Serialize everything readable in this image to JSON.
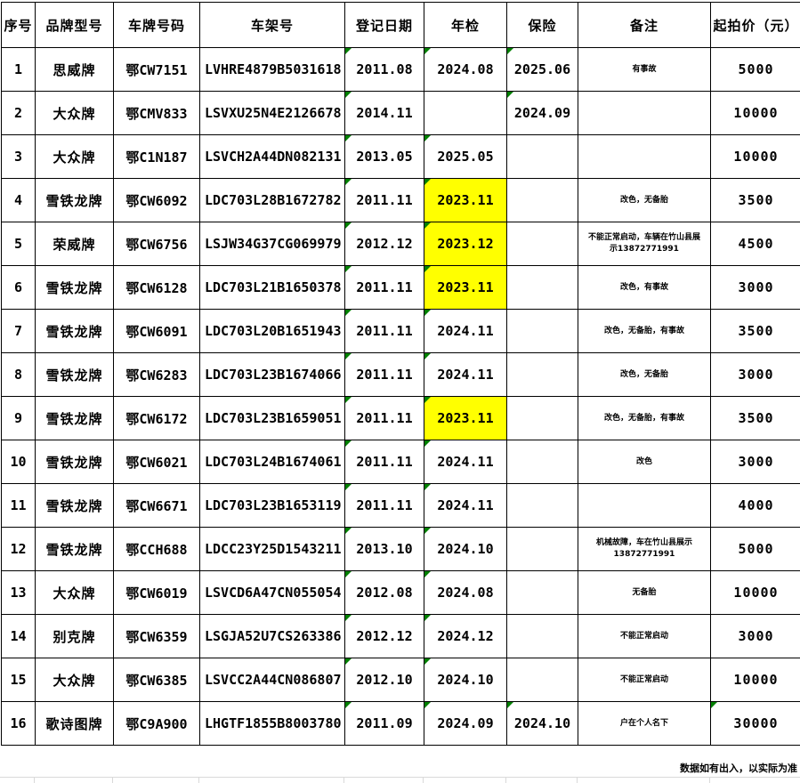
{
  "table": {
    "columns": [
      {
        "key": "index",
        "label": "序号"
      },
      {
        "key": "brand",
        "label": "品牌型号"
      },
      {
        "key": "plate",
        "label": "车牌号码"
      },
      {
        "key": "vin",
        "label": "车架号"
      },
      {
        "key": "reg_date",
        "label": "登记日期"
      },
      {
        "key": "inspection",
        "label": "年检"
      },
      {
        "key": "insurance",
        "label": "保险"
      },
      {
        "key": "remark",
        "label": "备注"
      },
      {
        "key": "price",
        "label": "起拍价（元）"
      }
    ],
    "rows": [
      {
        "index": "1",
        "brand": "思威牌",
        "plate": "鄂CW7151",
        "vin": "LVHRE4879B5031618",
        "reg_date": "2011.08",
        "inspection": "2024.08",
        "insurance": "2025.06",
        "remark": "有事故",
        "price": "5000",
        "inspection_highlight": false,
        "price_flag": false
      },
      {
        "index": "2",
        "brand": "大众牌",
        "plate": "鄂CMV833",
        "vin": "LSVXU25N4E2126678",
        "reg_date": "2014.11",
        "inspection": "",
        "insurance": "2024.09",
        "remark": "",
        "price": "10000",
        "inspection_highlight": false,
        "price_flag": false
      },
      {
        "index": "3",
        "brand": "大众牌",
        "plate": "鄂C1N187",
        "vin": "LSVCH2A44DN082131",
        "reg_date": "2013.05",
        "inspection": "2025.05",
        "insurance": "",
        "remark": "",
        "price": "10000",
        "inspection_highlight": false,
        "price_flag": false
      },
      {
        "index": "4",
        "brand": "雪铁龙牌",
        "plate": "鄂CW6092",
        "vin": "LDC703L28B1672782",
        "reg_date": "2011.11",
        "inspection": "2023.11",
        "insurance": "",
        "remark": "改色，无备胎",
        "price": "3500",
        "inspection_highlight": true,
        "price_flag": false
      },
      {
        "index": "5",
        "brand": "荣威牌",
        "plate": "鄂CW6756",
        "vin": "LSJW34G37CG069979",
        "reg_date": "2012.12",
        "inspection": "2023.12",
        "insurance": "",
        "remark": "不能正常启动，车辆在竹山县展示13872771991",
        "price": "4500",
        "inspection_highlight": true,
        "price_flag": false
      },
      {
        "index": "6",
        "brand": "雪铁龙牌",
        "plate": "鄂CW6128",
        "vin": "LDC703L21B1650378",
        "reg_date": "2011.11",
        "inspection": "2023.11",
        "insurance": "",
        "remark": "改色，有事故",
        "price": "3000",
        "inspection_highlight": true,
        "price_flag": false
      },
      {
        "index": "7",
        "brand": "雪铁龙牌",
        "plate": "鄂CW6091",
        "vin": "LDC703L20B1651943",
        "reg_date": "2011.11",
        "inspection": "2024.11",
        "insurance": "",
        "remark": "改色，无备胎，有事故",
        "price": "3500",
        "inspection_highlight": false,
        "price_flag": false
      },
      {
        "index": "8",
        "brand": "雪铁龙牌",
        "plate": "鄂CW6283",
        "vin": "LDC703L23B1674066",
        "reg_date": "2011.11",
        "inspection": "2024.11",
        "insurance": "",
        "remark": "改色，无备胎",
        "price": "3000",
        "inspection_highlight": false,
        "price_flag": false
      },
      {
        "index": "9",
        "brand": "雪铁龙牌",
        "plate": "鄂CW6172",
        "vin": "LDC703L23B1659051",
        "reg_date": "2011.11",
        "inspection": "2023.11",
        "insurance": "",
        "remark": "改色，无备胎，有事故",
        "price": "3500",
        "inspection_highlight": true,
        "price_flag": false
      },
      {
        "index": "10",
        "brand": "雪铁龙牌",
        "plate": "鄂CW6021",
        "vin": "LDC703L24B1674061",
        "reg_date": "2011.11",
        "inspection": "2024.11",
        "insurance": "",
        "remark": "改色",
        "price": "3000",
        "inspection_highlight": false,
        "price_flag": false
      },
      {
        "index": "11",
        "brand": "雪铁龙牌",
        "plate": "鄂CW6671",
        "vin": "LDC703L23B1653119",
        "reg_date": "2011.11",
        "inspection": "2024.11",
        "insurance": "",
        "remark": "",
        "price": "4000",
        "inspection_highlight": false,
        "price_flag": false
      },
      {
        "index": "12",
        "brand": "雪铁龙牌",
        "plate": "鄂CCH688",
        "vin": "LDCC23Y25D1543211",
        "reg_date": "2013.10",
        "inspection": "2024.10",
        "insurance": "",
        "remark": "机械故障，车在竹山县展示13872771991",
        "price": "5000",
        "inspection_highlight": false,
        "price_flag": false
      },
      {
        "index": "13",
        "brand": "大众牌",
        "plate": "鄂CW6019",
        "vin": "LSVCD6A47CN055054",
        "reg_date": "2012.08",
        "inspection": "2024.08",
        "insurance": "",
        "remark": "无备胎",
        "price": "10000",
        "inspection_highlight": false,
        "price_flag": false
      },
      {
        "index": "14",
        "brand": "别克牌",
        "plate": "鄂CW6359",
        "vin": "LSGJA52U7CS263386",
        "reg_date": "2012.12",
        "inspection": "2024.12",
        "insurance": "",
        "remark": "不能正常启动",
        "price": "3000",
        "inspection_highlight": false,
        "price_flag": false
      },
      {
        "index": "15",
        "brand": "大众牌",
        "plate": "鄂CW6385",
        "vin": "LSVCC2A44CN086807",
        "reg_date": "2012.10",
        "inspection": "2024.10",
        "insurance": "",
        "remark": "不能正常启动",
        "price": "10000",
        "inspection_highlight": false,
        "price_flag": false
      },
      {
        "index": "16",
        "brand": "歌诗图牌",
        "plate": "鄂C9A900",
        "vin": "LHGTF1855B8003780",
        "reg_date": "2011.09",
        "inspection": "2024.09",
        "insurance": "2024.10",
        "remark": "户在个人名下",
        "price": "30000",
        "inspection_highlight": false,
        "price_flag": true
      }
    ]
  },
  "footer": {
    "note": "数据如有出入，以实际为准"
  },
  "colors": {
    "inspection_highlight": "#FFFF00",
    "flag_triangle": "#008000",
    "table_border": "#000000",
    "faint_grid": "#D9D9D9"
  }
}
